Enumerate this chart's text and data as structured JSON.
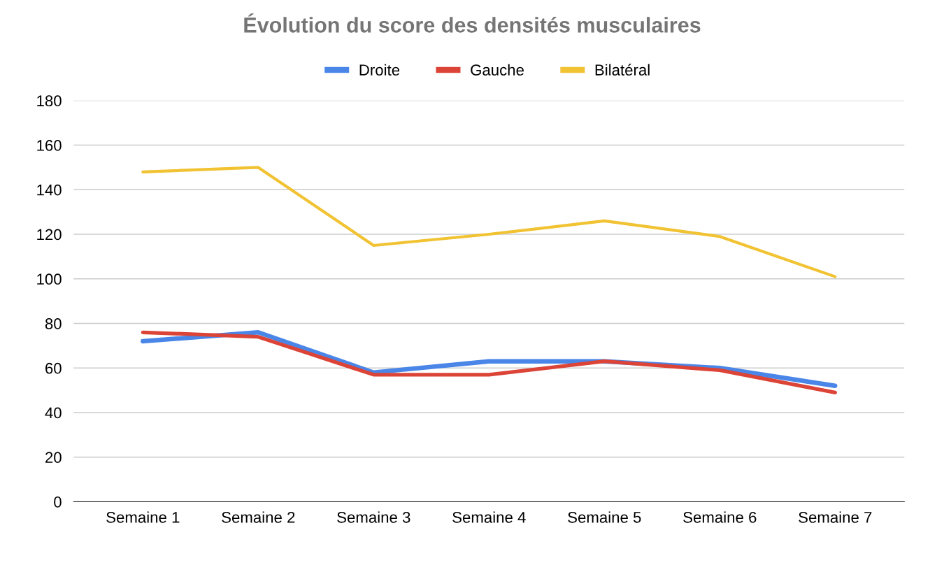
{
  "chart_data": {
    "type": "line",
    "title": "Évolution du score des densités musculaires",
    "categories": [
      "Semaine 1",
      "Semaine 2",
      "Semaine 3",
      "Semaine 4",
      "Semaine 5",
      "Semaine 6",
      "Semaine 7"
    ],
    "series": [
      {
        "name": "Droite",
        "color": "#4a86e8",
        "values": [
          72,
          76,
          58,
          63,
          63,
          60,
          52
        ]
      },
      {
        "name": "Gauche",
        "color": "#db4437",
        "values": [
          76,
          74,
          57,
          57,
          63,
          59,
          49
        ]
      },
      {
        "name": "Bilatéral",
        "color": "#f1c232",
        "values": [
          148,
          150,
          115,
          120,
          126,
          119,
          101
        ]
      }
    ],
    "ylim": [
      0,
      180
    ],
    "yticks": [
      0,
      20,
      40,
      60,
      80,
      100,
      120,
      140,
      160,
      180
    ],
    "grid": "y",
    "legend": "top",
    "marker": "none",
    "line_style": "solid"
  }
}
